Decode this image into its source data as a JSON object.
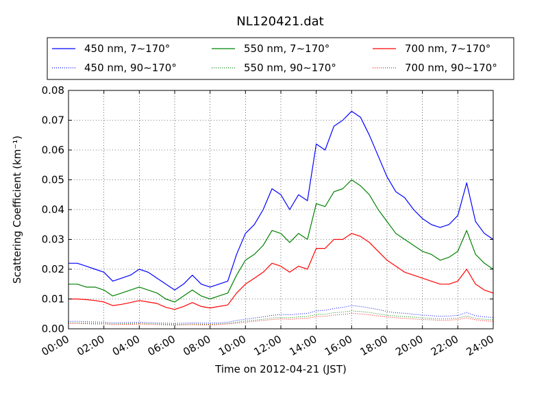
{
  "chart_data": {
    "type": "line",
    "title": "NL120421.dat",
    "xlabel": "Time on 2012-04-21 (JST)",
    "ylabel": "Scattering Coefficient (km⁻¹)",
    "xlim_hours": [
      0,
      24
    ],
    "ylim": [
      0.0,
      0.08
    ],
    "grid": true,
    "legend_position": "top, above plot",
    "x_tick_labels": [
      "00:00",
      "02:00",
      "04:00",
      "06:00",
      "08:00",
      "10:00",
      "12:00",
      "14:00",
      "16:00",
      "18:00",
      "20:00",
      "22:00",
      "24:00"
    ],
    "y_tick_labels": [
      "0.00",
      "0.01",
      "0.02",
      "0.03",
      "0.04",
      "0.05",
      "0.06",
      "0.07",
      "0.08"
    ],
    "x_hours": [
      0,
      0.5,
      1,
      1.5,
      2,
      2.5,
      3,
      3.5,
      4,
      4.5,
      5,
      5.5,
      6,
      6.5,
      7,
      7.5,
      8,
      8.5,
      9,
      9.5,
      10,
      10.5,
      11,
      11.5,
      12,
      12.5,
      13,
      13.5,
      14,
      14.5,
      15,
      15.5,
      16,
      16.5,
      17,
      17.5,
      18,
      18.5,
      19,
      19.5,
      20,
      20.5,
      21,
      21.5,
      22,
      22.5,
      23,
      23.5,
      24
    ],
    "series": [
      {
        "name": "450 nm, 7∼170°",
        "color": "#0000ff",
        "style": "solid",
        "values": [
          0.022,
          0.022,
          0.021,
          0.02,
          0.019,
          0.016,
          0.017,
          0.018,
          0.02,
          0.019,
          0.017,
          0.015,
          0.013,
          0.015,
          0.018,
          0.015,
          0.014,
          0.015,
          0.016,
          0.025,
          0.032,
          0.035,
          0.04,
          0.047,
          0.045,
          0.04,
          0.045,
          0.043,
          0.062,
          0.06,
          0.068,
          0.07,
          0.073,
          0.071,
          0.065,
          0.058,
          0.051,
          0.046,
          0.044,
          0.04,
          0.037,
          0.035,
          0.034,
          0.035,
          0.038,
          0.049,
          0.036,
          0.032,
          0.03
        ]
      },
      {
        "name": "450 nm, 90∼170°",
        "color": "#0000ff",
        "style": "dotted",
        "values": [
          0.0025,
          0.0025,
          0.0024,
          0.0023,
          0.0022,
          0.002,
          0.0021,
          0.0021,
          0.0022,
          0.0021,
          0.002,
          0.0019,
          0.0018,
          0.0019,
          0.002,
          0.0019,
          0.0019,
          0.002,
          0.0022,
          0.0028,
          0.0032,
          0.0036,
          0.004,
          0.0045,
          0.0048,
          0.0047,
          0.005,
          0.0052,
          0.006,
          0.0062,
          0.0068,
          0.0072,
          0.0078,
          0.0075,
          0.007,
          0.0065,
          0.0058,
          0.0054,
          0.0052,
          0.0049,
          0.0046,
          0.0044,
          0.0042,
          0.0043,
          0.0045,
          0.0055,
          0.0044,
          0.004,
          0.0038
        ]
      },
      {
        "name": "550 nm, 7∼170°",
        "color": "#008000",
        "style": "solid",
        "values": [
          0.015,
          0.015,
          0.014,
          0.014,
          0.013,
          0.011,
          0.012,
          0.013,
          0.014,
          0.013,
          0.012,
          0.01,
          0.009,
          0.011,
          0.013,
          0.011,
          0.01,
          0.011,
          0.012,
          0.018,
          0.023,
          0.025,
          0.028,
          0.033,
          0.032,
          0.029,
          0.032,
          0.03,
          0.042,
          0.041,
          0.046,
          0.047,
          0.05,
          0.048,
          0.045,
          0.04,
          0.036,
          0.032,
          0.03,
          0.028,
          0.026,
          0.025,
          0.023,
          0.024,
          0.026,
          0.033,
          0.025,
          0.022,
          0.02
        ]
      },
      {
        "name": "550 nm, 90∼170°",
        "color": "#008000",
        "style": "dotted",
        "values": [
          0.002,
          0.002,
          0.0019,
          0.0018,
          0.0018,
          0.0016,
          0.0017,
          0.0017,
          0.0018,
          0.0017,
          0.0016,
          0.0015,
          0.0014,
          0.0015,
          0.0016,
          0.0015,
          0.0015,
          0.0016,
          0.0018,
          0.0022,
          0.0026,
          0.0029,
          0.0032,
          0.0036,
          0.0038,
          0.0037,
          0.004,
          0.0041,
          0.0048,
          0.0049,
          0.0054,
          0.0056,
          0.006,
          0.0058,
          0.0055,
          0.005,
          0.0046,
          0.0043,
          0.0041,
          0.0039,
          0.0037,
          0.0035,
          0.0033,
          0.0034,
          0.0036,
          0.0043,
          0.0035,
          0.0032,
          0.003
        ]
      },
      {
        "name": "700 nm, 7∼170°",
        "color": "#ff0000",
        "style": "solid",
        "values": [
          0.01,
          0.01,
          0.0098,
          0.0095,
          0.009,
          0.0078,
          0.0082,
          0.0088,
          0.0095,
          0.009,
          0.0085,
          0.0072,
          0.0065,
          0.0075,
          0.0088,
          0.0075,
          0.007,
          0.0075,
          0.008,
          0.012,
          0.015,
          0.017,
          0.019,
          0.022,
          0.021,
          0.019,
          0.021,
          0.02,
          0.027,
          0.027,
          0.03,
          0.03,
          0.032,
          0.031,
          0.029,
          0.026,
          0.023,
          0.021,
          0.019,
          0.018,
          0.017,
          0.016,
          0.015,
          0.015,
          0.016,
          0.02,
          0.015,
          0.013,
          0.012
        ]
      },
      {
        "name": "700 nm, 90∼170°",
        "color": "#ff0000",
        "style": "dotted",
        "values": [
          0.0018,
          0.0018,
          0.0017,
          0.0016,
          0.0016,
          0.0014,
          0.0015,
          0.0015,
          0.0016,
          0.0015,
          0.0014,
          0.0013,
          0.0012,
          0.0013,
          0.0014,
          0.0013,
          0.0013,
          0.0014,
          0.0016,
          0.0019,
          0.0022,
          0.0025,
          0.0028,
          0.0031,
          0.0033,
          0.0032,
          0.0034,
          0.0035,
          0.0041,
          0.0042,
          0.0046,
          0.0048,
          0.0052,
          0.005,
          0.0047,
          0.0043,
          0.004,
          0.0037,
          0.0035,
          0.0033,
          0.0031,
          0.003,
          0.0028,
          0.0029,
          0.0031,
          0.0037,
          0.003,
          0.0027,
          0.0025
        ]
      }
    ]
  }
}
